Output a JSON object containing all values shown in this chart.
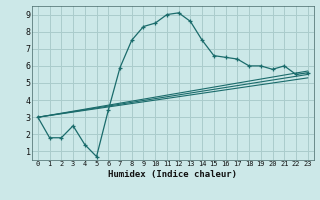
{
  "xlabel": "Humidex (Indice chaleur)",
  "bg_color": "#cce8e8",
  "grid_color": "#aacccc",
  "line_color": "#1a6b6b",
  "xlim": [
    -0.5,
    23.5
  ],
  "ylim": [
    0.5,
    9.5
  ],
  "xticks": [
    0,
    1,
    2,
    3,
    4,
    5,
    6,
    7,
    8,
    9,
    10,
    11,
    12,
    13,
    14,
    15,
    16,
    17,
    18,
    19,
    20,
    21,
    22,
    23
  ],
  "yticks": [
    1,
    2,
    3,
    4,
    5,
    6,
    7,
    8,
    9
  ],
  "series1_x": [
    0,
    1,
    2,
    3,
    4,
    5,
    6,
    7,
    8,
    9,
    10,
    11,
    12,
    13,
    14,
    15,
    16,
    17,
    18,
    19,
    20,
    21,
    22,
    23
  ],
  "series1_y": [
    3.0,
    1.8,
    1.8,
    2.5,
    1.4,
    0.7,
    3.4,
    5.9,
    7.5,
    8.3,
    8.5,
    9.0,
    9.1,
    8.6,
    7.5,
    6.6,
    6.5,
    6.4,
    6.0,
    6.0,
    5.8,
    6.0,
    5.5,
    5.6
  ],
  "series2_x": [
    0,
    23
  ],
  "series2_y": [
    3.0,
    5.7
  ],
  "series3_x": [
    0,
    23
  ],
  "series3_y": [
    3.0,
    5.5
  ],
  "series4_x": [
    0,
    23
  ],
  "series4_y": [
    3.0,
    5.3
  ]
}
